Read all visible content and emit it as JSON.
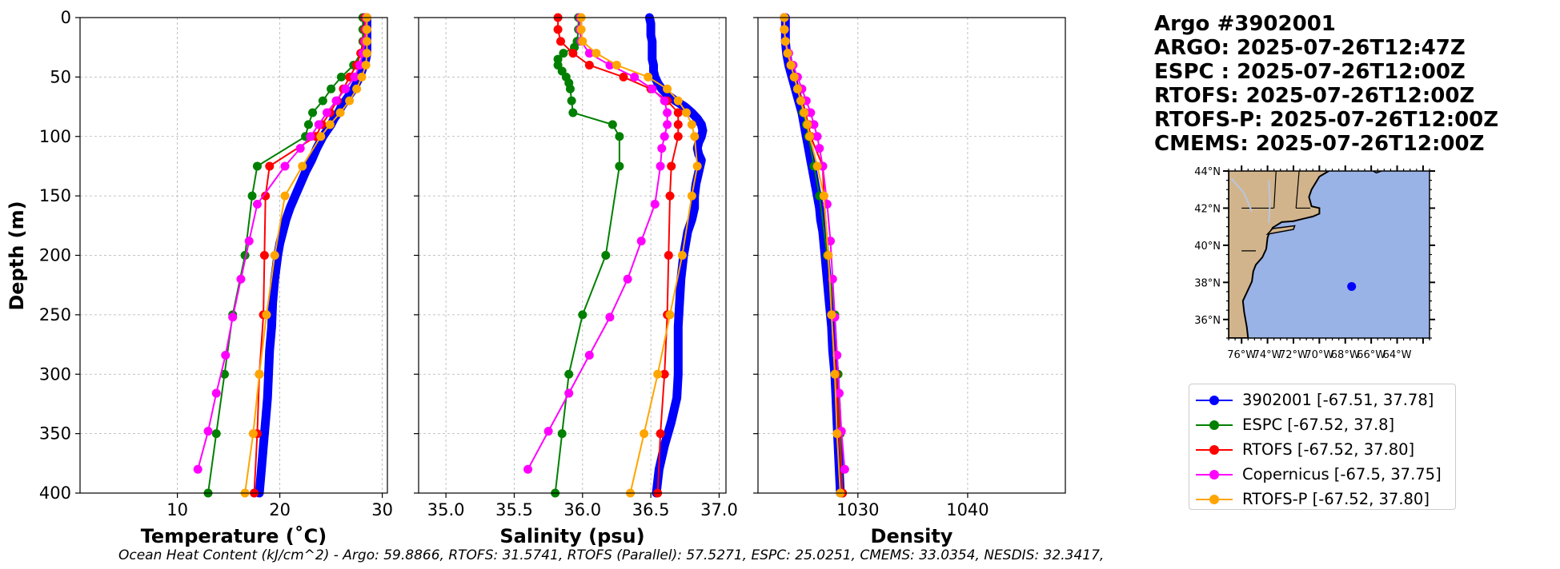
{
  "float_title": {
    "argo_id": "Argo #3902001",
    "argo_time": "ARGO: 2025-07-26T12:47Z",
    "espc_time": "ESPC : 2025-07-26T12:00Z",
    "rtofs_time": "RTOFS: 2025-07-26T12:00Z",
    "rtofsp_time": "RTOFS-P: 2025-07-26T12:00Z",
    "cmems_time": "CMEMS: 2025-07-26T12:00Z"
  },
  "footer": {
    "ohc_text": "Ocean Heat Content (kJ/cm^2) - Argo: 59.8866,  RTOFS: 31.5741,  RTOFS (Parallel): 57.5271,  ESPC: 25.0251,  CMEMS: 33.0354,  NESDIS: 32.3417,"
  },
  "colors": {
    "argo": "#0000ff",
    "espc": "#008000",
    "rtofs": "#ff0000",
    "copernicus": "#ff00ff",
    "rtofsp": "#ffa500",
    "land": "#d2b48c",
    "ocean": "#99b3e6"
  },
  "legend": [
    {
      "key": "argo",
      "label": "3902001 [-67.51, 37.78]"
    },
    {
      "key": "espc",
      "label": "ESPC [-67.52, 37.8]"
    },
    {
      "key": "rtofs",
      "label": "RTOFS [-67.52, 37.80]"
    },
    {
      "key": "copernicus",
      "label": "Copernicus [-67.5, 37.75]"
    },
    {
      "key": "rtofsp",
      "label": "RTOFS-P [-67.52, 37.80]"
    }
  ],
  "chart_data": [
    {
      "type": "line",
      "title": "",
      "xlabel": "Temperature (˚C)",
      "ylabel": "Depth (m)",
      "xlim": [
        0.5,
        30.5
      ],
      "ylim": [
        400,
        0
      ],
      "xticks": [
        10,
        20,
        30
      ],
      "yticks": [
        0,
        50,
        100,
        150,
        200,
        250,
        300,
        350,
        400
      ],
      "grid": true,
      "series": [
        {
          "name": "argo",
          "style": "dense",
          "depths": [
            0,
            5,
            10,
            15,
            20,
            25,
            30,
            35,
            40,
            45,
            50,
            55,
            60,
            65,
            70,
            75,
            80,
            85,
            90,
            95,
            100,
            110,
            120,
            130,
            140,
            150,
            160,
            170,
            180,
            190,
            200,
            220,
            240,
            260,
            280,
            300,
            320,
            340,
            360,
            380,
            400
          ],
          "values": [
            28.5,
            28.5,
            28.5,
            28.5,
            28.5,
            28.5,
            28.5,
            28.4,
            28.2,
            28.0,
            27.8,
            27.5,
            27.2,
            26.8,
            26.4,
            26.0,
            25.7,
            25.3,
            25.0,
            24.6,
            24.2,
            23.6,
            23.1,
            22.5,
            22.0,
            21.5,
            21.0,
            20.6,
            20.3,
            20.0,
            19.8,
            19.5,
            19.3,
            19.2,
            19.0,
            18.9,
            18.8,
            18.6,
            18.4,
            18.2,
            18.0
          ]
        },
        {
          "name": "espc",
          "style": "marker",
          "depths": [
            0,
            10,
            20,
            30,
            40,
            50,
            60,
            70,
            80,
            90,
            100,
            125,
            150,
            200,
            250,
            300,
            350,
            400
          ],
          "values": [
            28.1,
            28.1,
            28.1,
            27.9,
            27.2,
            26.0,
            25.0,
            24.2,
            23.2,
            22.8,
            22.5,
            17.8,
            17.3,
            16.6,
            15.4,
            14.6,
            13.8,
            13.0
          ]
        },
        {
          "name": "rtofs",
          "style": "marker",
          "depths": [
            0,
            10,
            20,
            30,
            40,
            50,
            60,
            70,
            80,
            90,
            100,
            125,
            150,
            200,
            250,
            300,
            350,
            400
          ],
          "values": [
            28.3,
            28.3,
            28.2,
            27.9,
            27.5,
            26.8,
            26.2,
            25.6,
            24.9,
            24.1,
            23.5,
            19.0,
            18.6,
            18.5,
            18.4,
            18.0,
            17.8,
            17.5
          ]
        },
        {
          "name": "copernicus",
          "style": "marker",
          "depths": [
            0,
            10,
            20,
            30,
            40,
            50,
            60,
            70,
            80,
            90,
            100,
            110,
            125,
            157,
            188,
            220,
            252,
            284,
            316,
            348,
            380
          ],
          "values": [
            28.4,
            28.4,
            28.3,
            28.1,
            27.8,
            27.3,
            26.4,
            25.5,
            24.6,
            23.8,
            23.0,
            22.0,
            20.5,
            17.8,
            17.0,
            16.2,
            15.4,
            14.7,
            13.8,
            13.0,
            12.0
          ]
        },
        {
          "name": "rtofsp",
          "style": "marker",
          "depths": [
            0,
            10,
            20,
            30,
            40,
            50,
            60,
            70,
            80,
            90,
            100,
            125,
            150,
            200,
            250,
            300,
            350,
            400
          ],
          "values": [
            28.5,
            28.5,
            28.5,
            28.5,
            28.4,
            28.0,
            27.5,
            26.8,
            25.9,
            24.9,
            24.0,
            22.2,
            20.5,
            19.5,
            18.7,
            18.0,
            17.4,
            16.6
          ]
        }
      ]
    },
    {
      "type": "line",
      "title": "",
      "xlabel": "Salinity (psu)",
      "ylabel": "",
      "xlim": [
        34.8,
        37.05
      ],
      "ylim": [
        400,
        0
      ],
      "xticks": [
        "35.0",
        "35.5",
        "36.0",
        "36.5",
        "37.0"
      ],
      "yticks": [
        0,
        50,
        100,
        150,
        200,
        250,
        300,
        350,
        400
      ],
      "grid": true,
      "series": [
        {
          "name": "argo",
          "style": "dense",
          "depths": [
            0,
            5,
            10,
            15,
            20,
            25,
            30,
            35,
            40,
            45,
            50,
            55,
            60,
            65,
            70,
            75,
            80,
            85,
            90,
            95,
            100,
            105,
            110,
            115,
            120,
            130,
            140,
            150,
            160,
            170,
            180,
            200,
            220,
            240,
            260,
            280,
            300,
            320,
            340,
            360,
            380,
            400
          ],
          "values": [
            36.49,
            36.5,
            36.5,
            36.5,
            36.51,
            36.51,
            36.51,
            36.51,
            36.52,
            36.52,
            36.53,
            36.55,
            36.58,
            36.62,
            36.68,
            36.75,
            36.8,
            36.84,
            36.87,
            36.88,
            36.87,
            36.85,
            36.84,
            36.85,
            36.87,
            36.85,
            36.83,
            36.82,
            36.82,
            36.8,
            36.77,
            36.74,
            36.72,
            36.71,
            36.7,
            36.7,
            36.7,
            36.69,
            36.65,
            36.6,
            36.56,
            36.54
          ]
        },
        {
          "name": "espc",
          "style": "marker",
          "depths": [
            0,
            10,
            20,
            25,
            30,
            35,
            40,
            45,
            50,
            55,
            60,
            70,
            80,
            90,
            100,
            125,
            200,
            250,
            300,
            350,
            400
          ],
          "values": [
            35.97,
            35.97,
            35.96,
            35.94,
            35.86,
            35.82,
            35.82,
            35.85,
            35.88,
            35.9,
            35.91,
            35.92,
            35.93,
            36.22,
            36.27,
            36.27,
            36.17,
            36.0,
            35.9,
            35.85,
            35.8
          ]
        },
        {
          "name": "rtofs",
          "style": "marker",
          "depths": [
            0,
            10,
            20,
            30,
            40,
            50,
            60,
            70,
            80,
            90,
            100,
            125,
            150,
            200,
            250,
            300,
            350,
            400
          ],
          "values": [
            35.82,
            35.82,
            35.84,
            35.93,
            36.05,
            36.3,
            36.5,
            36.62,
            36.7,
            36.7,
            36.7,
            36.65,
            36.64,
            36.63,
            36.62,
            36.6,
            36.57,
            36.55
          ]
        },
        {
          "name": "copernicus",
          "style": "marker",
          "depths": [
            0,
            10,
            20,
            30,
            40,
            50,
            60,
            70,
            80,
            90,
            100,
            110,
            125,
            157,
            188,
            220,
            252,
            284,
            316,
            348,
            380
          ],
          "values": [
            35.98,
            35.98,
            35.99,
            36.05,
            36.2,
            36.38,
            36.51,
            36.6,
            36.62,
            36.62,
            36.6,
            36.58,
            36.57,
            36.53,
            36.43,
            36.33,
            36.2,
            36.05,
            35.9,
            35.75,
            35.6
          ]
        },
        {
          "name": "rtofsp",
          "style": "marker",
          "depths": [
            0,
            10,
            20,
            30,
            40,
            50,
            60,
            70,
            80,
            90,
            100,
            125,
            150,
            200,
            250,
            300,
            350,
            400
          ],
          "values": [
            35.99,
            35.99,
            36.0,
            36.1,
            36.25,
            36.48,
            36.62,
            36.7,
            36.76,
            36.8,
            36.82,
            36.84,
            36.8,
            36.73,
            36.64,
            36.55,
            36.45,
            36.35
          ]
        }
      ]
    },
    {
      "type": "line",
      "title": "",
      "xlabel": "Density",
      "ylabel": "",
      "xlim": [
        1020.9,
        1048.9
      ],
      "ylim": [
        400,
        0
      ],
      "xticks": [
        1030,
        1040
      ],
      "yticks": [
        0,
        50,
        100,
        150,
        200,
        250,
        300,
        350,
        400
      ],
      "grid": true,
      "series": [
        {
          "name": "argo",
          "style": "dense",
          "depths": [
            0,
            10,
            20,
            30,
            40,
            50,
            60,
            70,
            80,
            90,
            100,
            110,
            120,
            130,
            140,
            150,
            160,
            170,
            180,
            190,
            200,
            220,
            240,
            260,
            280,
            300,
            320,
            340,
            360,
            380,
            400
          ],
          "values": [
            1023.4,
            1023.4,
            1023.4,
            1023.5,
            1023.7,
            1024.0,
            1024.3,
            1024.6,
            1024.9,
            1025.1,
            1025.3,
            1025.5,
            1025.7,
            1025.9,
            1026.1,
            1026.3,
            1026.5,
            1026.6,
            1026.8,
            1026.9,
            1027.0,
            1027.2,
            1027.4,
            1027.6,
            1027.7,
            1027.9,
            1028.0,
            1028.1,
            1028.2,
            1028.3,
            1028.4
          ]
        },
        {
          "name": "espc",
          "style": "marker",
          "depths": [
            0,
            10,
            20,
            30,
            40,
            50,
            60,
            70,
            80,
            90,
            100,
            125,
            150,
            200,
            250,
            300,
            350,
            400
          ],
          "values": [
            1023.3,
            1023.3,
            1023.4,
            1023.6,
            1023.9,
            1024.2,
            1024.5,
            1024.8,
            1025.0,
            1025.3,
            1025.5,
            1026.0,
            1026.5,
            1027.2,
            1027.9,
            1028.2,
            1028.4,
            1028.6
          ]
        },
        {
          "name": "rtofs",
          "style": "marker",
          "depths": [
            0,
            10,
            20,
            30,
            40,
            50,
            60,
            70,
            80,
            90,
            100,
            125,
            150,
            200,
            250,
            300,
            350,
            400
          ],
          "values": [
            1023.3,
            1023.3,
            1023.4,
            1023.6,
            1023.9,
            1024.2,
            1024.6,
            1024.9,
            1025.2,
            1025.5,
            1025.7,
            1026.8,
            1026.9,
            1027.3,
            1027.6,
            1028.0,
            1028.3,
            1028.6
          ]
        },
        {
          "name": "copernicus",
          "style": "marker",
          "depths": [
            0,
            10,
            20,
            30,
            40,
            50,
            60,
            70,
            80,
            90,
            100,
            110,
            125,
            157,
            188,
            220,
            252,
            284,
            316,
            348,
            380
          ],
          "values": [
            1023.3,
            1023.3,
            1023.4,
            1023.7,
            1024.1,
            1024.5,
            1024.9,
            1025.3,
            1025.7,
            1026.0,
            1026.3,
            1026.5,
            1026.8,
            1027.2,
            1027.5,
            1027.7,
            1027.9,
            1028.1,
            1028.3,
            1028.5,
            1028.8
          ]
        },
        {
          "name": "rtofsp",
          "style": "marker",
          "depths": [
            0,
            10,
            20,
            30,
            40,
            50,
            60,
            70,
            80,
            90,
            100,
            125,
            150,
            200,
            250,
            300,
            350,
            400
          ],
          "values": [
            1023.3,
            1023.3,
            1023.4,
            1023.6,
            1023.9,
            1024.2,
            1024.5,
            1024.8,
            1025.1,
            1025.4,
            1025.6,
            1026.3,
            1026.9,
            1027.3,
            1027.6,
            1027.9,
            1028.1,
            1028.4
          ]
        }
      ]
    },
    {
      "type": "map",
      "title": "",
      "lon_range": [
        -77,
        -61.5
      ],
      "lat_range": [
        35,
        44
      ],
      "lon_ticks": [
        "76°W",
        "74°W",
        "72°W",
        "70°W",
        "68°W",
        "66°W",
        "64°W"
      ],
      "lon_tick_values": [
        -76,
        -74,
        -72,
        -70,
        -68,
        -66,
        -64
      ],
      "lat_ticks": [
        "44°N",
        "42°N",
        "40°N",
        "38°N",
        "36°N"
      ],
      "lat_tick_values": [
        44,
        42,
        40,
        38,
        36
      ],
      "float_position": {
        "lon": -67.51,
        "lat": 37.78
      }
    }
  ]
}
